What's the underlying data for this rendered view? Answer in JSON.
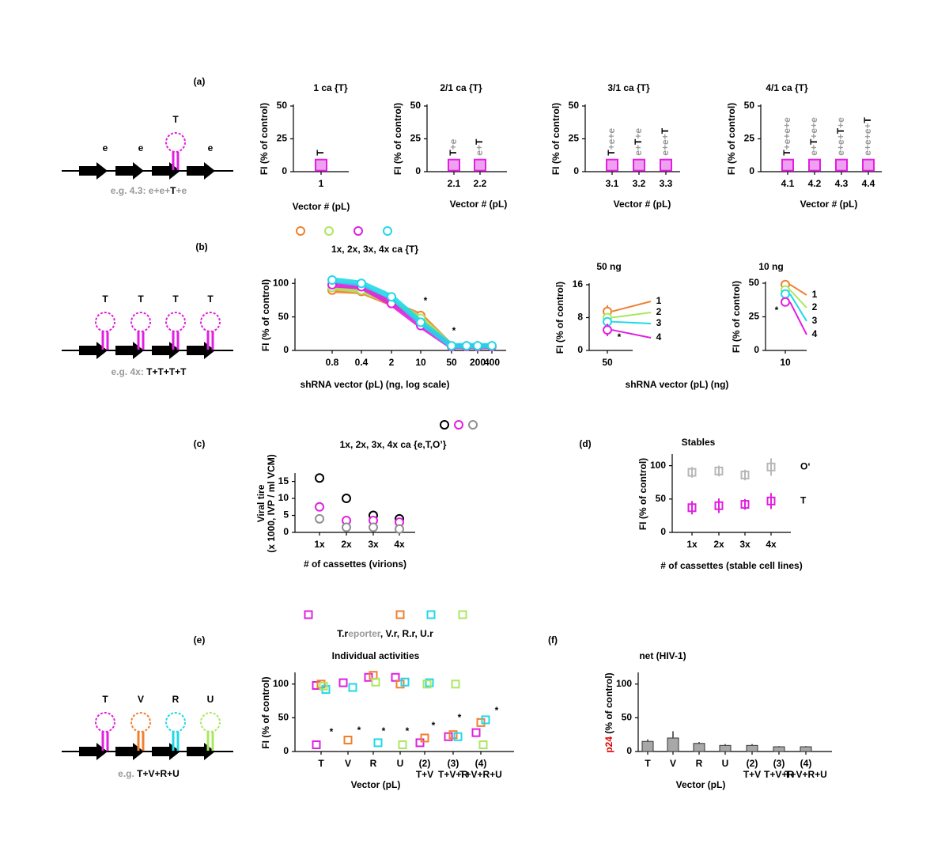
{
  "panels": [
    "(a)",
    "(b)",
    "(c)",
    "(d)",
    "(e)",
    "(f)"
  ],
  "diagrams": [
    {
      "letters": [
        "e",
        "e",
        "T",
        "e"
      ],
      "loop_colors": [
        null,
        null,
        "#e020e0",
        null
      ],
      "caption": [
        "e.g. 4.3:",
        " e+e+",
        "T",
        "+e"
      ],
      "caption_colors": [
        "#999999",
        "#999999",
        "#000000",
        "#999999"
      ]
    },
    {
      "letters": [
        "T",
        "T",
        "T",
        "T"
      ],
      "loop_colors": [
        "#e020e0",
        "#e020e0",
        "#e020e0",
        "#e020e0"
      ],
      "caption": [
        "e.g. 4x:",
        " T+T+T+T"
      ],
      "caption_colors": [
        "#999999",
        "#000000"
      ]
    },
    {
      "letters": [
        "T",
        "V",
        "R",
        "U"
      ],
      "loop_colors": [
        "#e020e0",
        "#f08030",
        "#20d8e8",
        "#a8e860"
      ],
      "caption": [
        "e.g.",
        " T+V+R+U"
      ],
      "caption_colors": [
        "#999999",
        "#000000"
      ]
    }
  ],
  "chart_data": [
    {
      "type": "dot",
      "title": "1 ca {T}",
      "ylabel": "FI (% of control)",
      "xlabel": "Vector # (pL)",
      "categories": [
        "1"
      ],
      "series": [
        {
          "color": "#e020e0",
          "fill": "#f0a0f0",
          "values": [
            5
          ]
        }
      ],
      "point_labels": [
        "T"
      ],
      "highlight": "T",
      "ylim": [
        0,
        50
      ],
      "yticks": [
        0,
        25,
        50
      ],
      "marker": "square"
    },
    {
      "type": "dot",
      "title": "2/1 ca {T}",
      "ylabel": "FI (% of control)",
      "xlabel": "Vector # (pL)",
      "categories": [
        "2.1",
        "2.2"
      ],
      "series": [
        {
          "color": "#e020e0",
          "fill": "#f0a0f0",
          "values": [
            5,
            5
          ]
        }
      ],
      "point_labels": [
        "T+e",
        "e+T"
      ],
      "highlight": "T",
      "ylim": [
        0,
        50
      ],
      "yticks": [
        0,
        25,
        50
      ],
      "marker": "square"
    },
    {
      "type": "dot",
      "title": "3/1 ca {T}",
      "ylabel": "FI (% of control)",
      "xlabel": "Vector # (pL)",
      "categories": [
        "3.1",
        "3.2",
        "3.3"
      ],
      "series": [
        {
          "color": "#e020e0",
          "fill": "#f0a0f0",
          "values": [
            5,
            5,
            5
          ]
        }
      ],
      "point_labels": [
        "T+e+e",
        "e+T+e",
        "e+e+T"
      ],
      "highlight": "T",
      "ylim": [
        0,
        50
      ],
      "yticks": [
        0,
        25,
        50
      ],
      "marker": "square"
    },
    {
      "type": "dot",
      "title": "4/1 ca {T}",
      "ylabel": "FI (% of control)",
      "xlabel": "Vector # (pL)",
      "categories": [
        "4.1",
        "4.2",
        "4.3",
        "4.4"
      ],
      "series": [
        {
          "color": "#e020e0",
          "fill": "#f0a0f0",
          "values": [
            5,
            5,
            5,
            5
          ]
        }
      ],
      "point_labels": [
        "T+e+e+e",
        "e+T+e+e",
        "e+e+T+e",
        "e+e+e+T"
      ],
      "highlight": "T",
      "ylim": [
        0,
        50
      ],
      "yticks": [
        0,
        25,
        50
      ],
      "marker": "square"
    },
    {
      "type": "line",
      "title": "1x, 2x, 3x, 4x ca {T}",
      "ylabel": "FI (% of control)",
      "xlabel": "shRNA vector (pL) (ng, log scale)",
      "categories": [
        "0.8",
        "0.4",
        "2",
        "10",
        "50",
        null,
        "200",
        "400"
      ],
      "category_colors": [
        "#000000",
        "#000000",
        "#000000",
        "#e00000",
        "#e00000",
        "#000000",
        "#000000",
        "#000000"
      ],
      "series": [
        {
          "color": "#f08030",
          "values": [
            90,
            88,
            70,
            52,
            6,
            6,
            6,
            6
          ]
        },
        {
          "color": "#a8e860",
          "values": [
            94,
            90,
            72,
            48,
            6,
            6,
            6,
            6
          ]
        },
        {
          "color": "#e020e0",
          "values": [
            98,
            95,
            70,
            37,
            6,
            6,
            6,
            6
          ]
        },
        {
          "color": "#20d8e8",
          "values": [
            105,
            100,
            80,
            42,
            7,
            7,
            7,
            7
          ]
        }
      ],
      "annotations": [
        "*",
        "*"
      ],
      "ylim": [
        0,
        105
      ],
      "yticks": [
        0,
        50,
        100
      ]
    },
    {
      "type": "dot",
      "title": "50 ng",
      "ylabel": "FI (% of control)",
      "xlabel": "shRNA vector (pL) (ng)",
      "categories": [
        "50"
      ],
      "series": [
        {
          "name": "1",
          "color": "#f08030",
          "values": [
            9.5
          ],
          "errors": [
            1.5
          ]
        },
        {
          "name": "2",
          "color": "#a8e860",
          "values": [
            8
          ],
          "errors": [
            1
          ]
        },
        {
          "name": "3",
          "color": "#20d8e8",
          "values": [
            7
          ],
          "errors": [
            1
          ]
        },
        {
          "name": "4",
          "color": "#e020e0",
          "values": [
            5
          ],
          "errors": [
            1.5
          ]
        }
      ],
      "annotations": [
        "*"
      ],
      "ylim": [
        0,
        16
      ],
      "yticks": [
        0,
        8,
        16
      ],
      "marker": "circle"
    },
    {
      "type": "dot",
      "title": "10 ng",
      "ylabel": "FI (% of control)",
      "categories": [
        "10"
      ],
      "series": [
        {
          "name": "1",
          "color": "#f08030",
          "values": [
            49
          ],
          "errors": [
            3
          ]
        },
        {
          "name": "2",
          "color": "#a8e860",
          "values": [
            45
          ],
          "errors": [
            2
          ]
        },
        {
          "name": "3",
          "color": "#20d8e8",
          "values": [
            42
          ],
          "errors": [
            2
          ]
        },
        {
          "name": "4",
          "color": "#e020e0",
          "values": [
            36
          ],
          "errors": [
            2
          ]
        }
      ],
      "annotations": [
        "*"
      ],
      "ylim": [
        0,
        50
      ],
      "yticks": [
        0,
        25,
        50
      ],
      "marker": "circle"
    },
    {
      "type": "dot",
      "title": "1x, 2x, 3x, 4x ca {e,T,O’}",
      "ylabel_lines": [
        "Viral tire",
        "(x 1000, IVP / ml VCM)"
      ],
      "xlabel": "# of cassettes (virions)",
      "categories": [
        "1x",
        "2x",
        "3x",
        "4x"
      ],
      "series": [
        {
          "color": "#000000",
          "values": [
            16,
            10,
            5,
            4
          ]
        },
        {
          "color": "#e020e0",
          "values": [
            7.5,
            3.5,
            3.5,
            3
          ]
        },
        {
          "color": "#909090",
          "values": [
            4,
            1.5,
            1.5,
            1
          ]
        }
      ],
      "ylim": [
        0,
        17
      ],
      "yticks": [
        0,
        5,
        10,
        15
      ],
      "marker": "circle"
    },
    {
      "type": "dot",
      "title": "Stables",
      "ylabel": "FI (% of control)",
      "xlabel": "# of cassettes (stable cell lines)",
      "categories": [
        "1x",
        "2x",
        "3x",
        "4x"
      ],
      "series": [
        {
          "name": "O‘",
          "color": "#b8b8b8",
          "values": [
            90,
            92,
            86,
            98
          ],
          "errors": [
            8,
            8,
            8,
            13
          ]
        },
        {
          "name": "T",
          "color": "#e020e0",
          "values": [
            37,
            40,
            42,
            47
          ],
          "errors": [
            10,
            11,
            8,
            12
          ]
        }
      ],
      "ylim": [
        0,
        115
      ],
      "yticks": [
        0,
        50,
        100
      ],
      "marker": "square"
    },
    {
      "type": "dot",
      "subtitle": [
        "T.r",
        "eporter",
        ", V.r, R.r, U.r"
      ],
      "subtitle_colors": [
        "#000000",
        "#999999",
        "#000000"
      ],
      "title": "Individual activities",
      "ylabel": "FI (% of control)",
      "xlabel": "Vector (pL)",
      "categories": [
        "T",
        "V",
        "R",
        "U",
        "(2)",
        "(3)",
        "(4)"
      ],
      "category_sublabels": [
        null,
        null,
        null,
        null,
        "T+V",
        "T+V+R",
        "T+V+R+U"
      ],
      "series": [
        {
          "color": "#e020e0",
          "values": [
            10,
            null,
            null,
            null,
            13,
            22,
            28
          ],
          "control": [
            98,
            102,
            110,
            110,
            null,
            null,
            null
          ]
        },
        {
          "color": "#f08030",
          "values": [
            null,
            17,
            null,
            null,
            20,
            25,
            43
          ],
          "control": [
            100,
            null,
            113,
            100,
            null,
            null,
            null
          ]
        },
        {
          "color": "#20d8e8",
          "values": [
            null,
            null,
            13,
            null,
            null,
            22,
            47
          ],
          "control": [
            92,
            95,
            null,
            103,
            102,
            null,
            null
          ]
        },
        {
          "color": "#a8e860",
          "values": [
            null,
            null,
            null,
            10,
            null,
            null,
            10
          ],
          "control": [
            97,
            null,
            103,
            null,
            100,
            100,
            null
          ]
        }
      ],
      "annotations": [
        "*",
        "*",
        "*",
        "*",
        "*",
        "*",
        "*"
      ],
      "ylim": [
        0,
        115
      ],
      "yticks": [
        0,
        50,
        100
      ],
      "marker": "square"
    },
    {
      "type": "bar",
      "title": "net (HIV-1)",
      "ylabel": [
        "p24",
        " (% of control)"
      ],
      "ylabel_colors": [
        "#e00000",
        "#000000"
      ],
      "xlabel": "Vector (pL)",
      "categories": [
        "T",
        "V",
        "R",
        "U",
        "(2)",
        "(3)",
        "(4)"
      ],
      "category_sublabels": [
        null,
        null,
        null,
        null,
        "T+V",
        "T+V+R",
        "T+V+R+U"
      ],
      "values": [
        15,
        20,
        12,
        9,
        9,
        7,
        7
      ],
      "errors": [
        3,
        10,
        2,
        2,
        2,
        1,
        1
      ],
      "color": "#a8a8a8",
      "ylim": [
        0,
        115
      ],
      "yticks": [
        0,
        50,
        100
      ]
    }
  ]
}
